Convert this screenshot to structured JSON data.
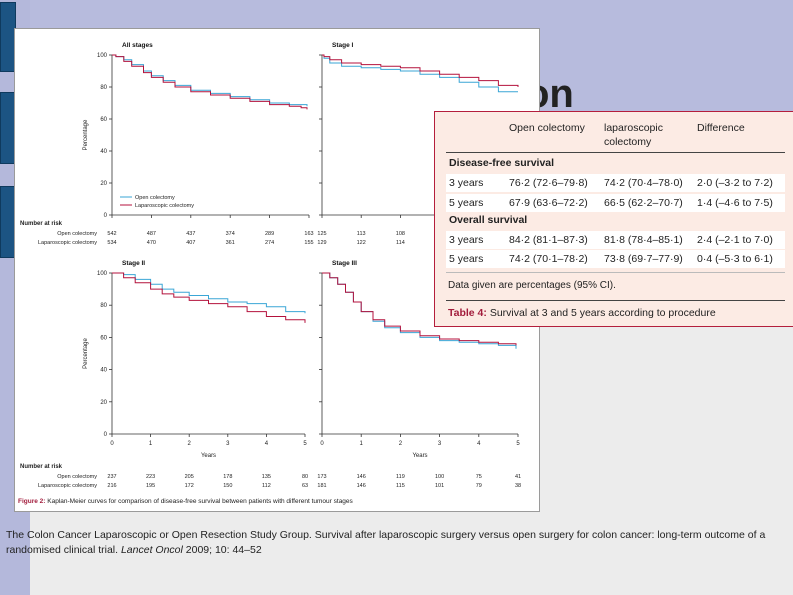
{
  "slide": {
    "title_fragment": "on",
    "reference": {
      "prefix": "The Colon Cancer Laparoscopic or Open Resection Study Group. Survival after laparoscopic surgery versus open surgery for colon cancer: long-term outcome of a randomised clinical trial. ",
      "journal": "Lancet Oncol",
      "suffix": " 2009; 10: 44–52"
    }
  },
  "colors": {
    "open": "#3aa6d6",
    "lap": "#b4123c",
    "accent": "#a21c3c"
  },
  "figure": {
    "caption_label": "Figure 2:",
    "caption_text": " Kaplan-Meier curves for comparison of disease-free survival between patients with different tumour stages",
    "y_label": "Percentage",
    "x_label": "Years",
    "risk_header": "Number at risk",
    "row_open": "Open colectomy",
    "row_lap": "Laparoscopic colectomy"
  },
  "chart_data": [
    {
      "type": "line",
      "title": "All stages",
      "x_ticks": [
        "0",
        "1",
        "2",
        "3",
        "4",
        "5"
      ],
      "y_ticks": [
        "0",
        "20",
        "40",
        "60",
        "80",
        "100"
      ],
      "xlim": [
        0,
        5
      ],
      "ylim": [
        0,
        100
      ],
      "ylabel": "Percentage",
      "legend": [
        "Open colectomy",
        "Laparoscopic colectomy"
      ],
      "legend_position": "bottom-left",
      "series": [
        {
          "name": "Open colectomy",
          "x": [
            0,
            0.1,
            0.3,
            0.5,
            0.8,
            1,
            1.3,
            1.6,
            2,
            2.5,
            3,
            3.5,
            4,
            4.5,
            4.8,
            4.95
          ],
          "y": [
            100,
            99,
            97,
            94,
            90,
            87,
            84,
            81,
            78,
            76,
            74,
            72,
            70,
            69,
            69,
            68
          ]
        },
        {
          "name": "Laparoscopic colectomy",
          "x": [
            0,
            0.1,
            0.3,
            0.5,
            0.8,
            1,
            1.3,
            1.6,
            2,
            2.5,
            3,
            3.5,
            4,
            4.5,
            4.8,
            4.95
          ],
          "y": [
            100,
            99,
            96,
            93,
            89,
            86,
            83,
            80,
            77,
            75,
            73,
            71,
            69,
            68,
            67,
            66
          ]
        }
      ],
      "risk": {
        "open": [
          "542",
          "487",
          "437",
          "374",
          "289",
          "163"
        ],
        "lap": [
          "534",
          "470",
          "407",
          "361",
          "274",
          "155"
        ]
      }
    },
    {
      "type": "line",
      "title": "Stage I",
      "xlim": [
        0,
        5
      ],
      "ylim": [
        0,
        100
      ],
      "series": [
        {
          "name": "Open colectomy",
          "x": [
            0,
            0.05,
            0.2,
            0.5,
            1,
            1.5,
            2,
            2.5,
            3,
            3.5,
            4,
            4.5,
            5
          ],
          "y": [
            100,
            98,
            95,
            93,
            92,
            91,
            90,
            88,
            86,
            83,
            80,
            77,
            77
          ]
        },
        {
          "name": "Laparoscopic colectomy",
          "x": [
            0,
            0.05,
            0.2,
            0.5,
            1,
            1.5,
            2,
            2.5,
            3,
            3.5,
            4,
            4.5,
            5
          ],
          "y": [
            100,
            99,
            97,
            95,
            94,
            93,
            92,
            90,
            88,
            86,
            84,
            81,
            80
          ]
        }
      ],
      "risk": {
        "open": [
          "125",
          "113",
          "108"
        ],
        "lap": [
          "129",
          "122",
          "114"
        ]
      }
    },
    {
      "type": "line",
      "title": "Stage II",
      "x_ticks": [
        "0",
        "1",
        "2",
        "3",
        "4",
        "5"
      ],
      "y_ticks": [
        "0",
        "20",
        "40",
        "60",
        "80",
        "100"
      ],
      "xlim": [
        0,
        5
      ],
      "ylim": [
        0,
        100
      ],
      "xlabel": "Years",
      "ylabel": "Percentage",
      "series": [
        {
          "name": "Open colectomy",
          "x": [
            0,
            0.3,
            0.6,
            1,
            1.3,
            1.6,
            2,
            2.5,
            3,
            3.5,
            4,
            4.5,
            5
          ],
          "y": [
            100,
            99,
            96,
            93,
            90,
            88,
            86,
            84,
            82,
            81,
            79,
            76,
            75
          ]
        },
        {
          "name": "Laparoscopic colectomy",
          "x": [
            0,
            0.3,
            0.6,
            1,
            1.3,
            1.6,
            2,
            2.5,
            3,
            3.5,
            4,
            4.5,
            5
          ],
          "y": [
            100,
            97,
            94,
            90,
            87,
            85,
            83,
            81,
            79,
            76,
            73,
            71,
            69
          ]
        }
      ],
      "risk": {
        "open": [
          "237",
          "223",
          "205",
          "178",
          "135",
          "80"
        ],
        "lap": [
          "216",
          "195",
          "172",
          "150",
          "112",
          "63"
        ]
      }
    },
    {
      "type": "line",
      "title": "Stage III",
      "x_ticks": [
        "0",
        "1",
        "2",
        "3",
        "4",
        "5"
      ],
      "xlim": [
        0,
        5
      ],
      "ylim": [
        0,
        100
      ],
      "xlabel": "Years",
      "series": [
        {
          "name": "Open colectomy",
          "x": [
            0,
            0.2,
            0.4,
            0.6,
            0.8,
            1,
            1.3,
            1.6,
            2,
            2.5,
            3,
            3.5,
            4,
            4.5,
            4.95
          ],
          "y": [
            100,
            97,
            93,
            88,
            82,
            76,
            70,
            66,
            63,
            60,
            58,
            57,
            56,
            55,
            53
          ]
        },
        {
          "name": "Laparoscopic colectomy",
          "x": [
            0,
            0.2,
            0.4,
            0.6,
            0.8,
            1,
            1.3,
            1.6,
            2,
            2.5,
            3,
            3.5,
            4,
            4.5,
            4.95
          ],
          "y": [
            100,
            97,
            93,
            88,
            82,
            76,
            71,
            67,
            64,
            61,
            59,
            58,
            57,
            56,
            55
          ]
        }
      ],
      "risk": {
        "open": [
          "173",
          "146",
          "119",
          "100",
          "75",
          "41"
        ],
        "lap": [
          "181",
          "146",
          "115",
          "101",
          "79",
          "38"
        ]
      }
    },
    {
      "type": "table",
      "title": "Table 4:",
      "subtitle": " Survival at 3 and 5 years according to procedure",
      "columns": [
        "",
        "Open colectomy",
        "laparoscopic colectomy",
        "Difference"
      ],
      "sections": [
        {
          "name": "Disease-free survival",
          "rows": [
            [
              "3 years",
              "76·2 (72·6–79·8)",
              "74·2 (70·4–78·0)",
              "2·0 (–3·2 to 7·2)"
            ],
            [
              "5 years",
              "67·9 (63·6–72·2)",
              "66·5 (62·2–70·7)",
              "1·4 (–4·6 to 7·5)"
            ]
          ]
        },
        {
          "name": "Overall survival",
          "rows": [
            [
              "3 years",
              "84·2 (81·1–87·3)",
              "81·8 (78·4–85·1)",
              "2·4 (–2·1 to 7·0)"
            ],
            [
              "5 years",
              "74·2 (70·1–78·2)",
              "73·8 (69·7–77·9)",
              "0·4 (–5·3 to 6·1)"
            ]
          ]
        }
      ],
      "note": "Data given are percentages (95% CI)."
    }
  ],
  "table": {
    "col_open": "Open colectomy",
    "col_lap_1": "laparoscopic",
    "col_lap_2": "colectomy",
    "col_diff": "Difference",
    "sec_dfs": "Disease-free survival",
    "sec_os": "Overall survival",
    "r1": [
      "3 years",
      "76·2 (72·6–79·8)",
      "74·2 (70·4–78·0)",
      "2·0 (–3·2 to 7·2)"
    ],
    "r2": [
      "5 years",
      "67·9 (63·6–72·2)",
      "66·5 (62·2–70·7)",
      "1·4 (–4·6 to 7·5)"
    ],
    "r3": [
      "3 years",
      "84·2 (81·1–87·3)",
      "81·8 (78·4–85·1)",
      "2·4 (–2·1 to 7·0)"
    ],
    "r4": [
      "5 years",
      "74·2 (70·1–78·2)",
      "73·8 (69·7–77·9)",
      "0·4 (–5·3 to 6·1)"
    ],
    "note": "Data given are percentages (95% CI).",
    "title_label": "Table 4:",
    "title_text": " Survival at 3 and 5 years according to procedure"
  }
}
